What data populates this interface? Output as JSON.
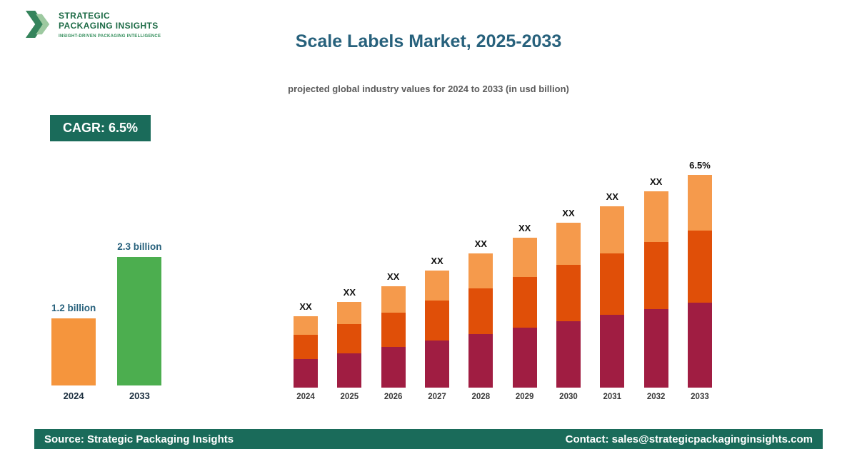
{
  "logo": {
    "line1": "STRATEGIC",
    "line2": "PACKAGING INSIGHTS",
    "tagline": "INSIGHT-DRIVEN PACKAGING INTELLIGENCE"
  },
  "icons": {
    "logo": "double-chevron-right"
  },
  "header": {
    "title": "Scale Labels Market, 2025-2033",
    "subtitle": "projected global industry values for 2024 to 2033 (in usd billion)"
  },
  "cagr_badge": "CAGR: 6.5%",
  "footer": {
    "source": "Source: Strategic Packaging Insights",
    "contact": "Contact: sales@strategicpackaginginsights.com"
  },
  "colors": {
    "teal_accent": "#1a6b5a",
    "title_blue": "#27617c",
    "orange_light": "#f59a4c",
    "orange_dark": "#e04f08",
    "maroon": "#a01d42",
    "green": "#4cae4f"
  },
  "chart_data": [
    {
      "name": "summary_bar",
      "type": "bar",
      "title": "",
      "unit": "usd billion",
      "categories": [
        "2024",
        "2033"
      ],
      "values": [
        1.2,
        2.3
      ],
      "value_labels": [
        "1.2 billion",
        "2.3 billion"
      ],
      "bar_colors": [
        "#f5953d",
        "#4cae4f"
      ],
      "ymax": 2.3
    },
    {
      "name": "projection_stacked_bar",
      "type": "bar",
      "subtype": "stacked",
      "categories": [
        "2024",
        "2025",
        "2026",
        "2027",
        "2028",
        "2029",
        "2030",
        "2031",
        "2032",
        "2033"
      ],
      "bar_value_labels": [
        "XX",
        "XX",
        "XX",
        "XX",
        "XX",
        "XX",
        "XX",
        "XX",
        "XX",
        "6.5%"
      ],
      "values_note": "numeric values are masked as XX in the source image; series values are relative heights read from the pixels",
      "grid": false,
      "legend": false,
      "series": [
        {
          "name": "bottom-segment",
          "color": "#a01d42",
          "values": [
            40,
            48,
            57,
            66,
            75,
            84,
            93,
            102,
            110,
            119
          ]
        },
        {
          "name": "middle-segment",
          "color": "#e04f08",
          "values": [
            34,
            41,
            48,
            56,
            64,
            71,
            79,
            86,
            94,
            101
          ]
        },
        {
          "name": "top-segment",
          "color": "#f59a4c",
          "values": [
            26,
            31,
            37,
            42,
            49,
            55,
            59,
            66,
            71,
            78
          ]
        }
      ]
    }
  ]
}
